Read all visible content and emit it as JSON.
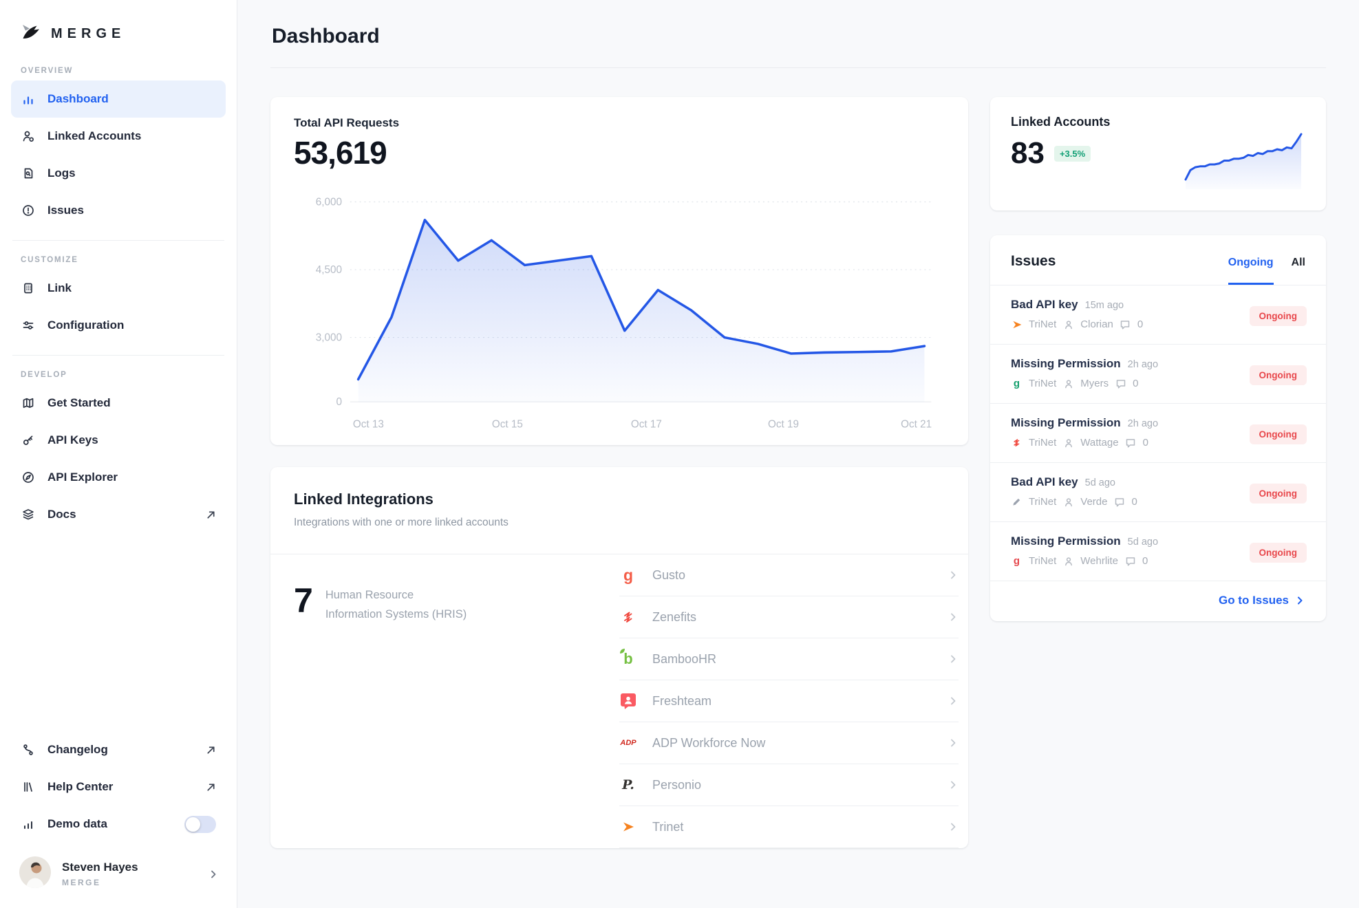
{
  "header": {
    "title": "Dashboard"
  },
  "sidebar": {
    "brand": "MERGE",
    "sections": [
      {
        "label": "OVERVIEW",
        "items": [
          {
            "label": "Dashboard"
          },
          {
            "label": "Linked Accounts"
          },
          {
            "label": "Logs"
          },
          {
            "label": "Issues"
          }
        ]
      },
      {
        "label": "CUSTOMIZE",
        "items": [
          {
            "label": "Link"
          },
          {
            "label": "Configuration"
          }
        ]
      },
      {
        "label": "DEVELOP",
        "items": [
          {
            "label": "Get Started"
          },
          {
            "label": "API Keys"
          },
          {
            "label": "API Explorer"
          },
          {
            "label": "Docs"
          }
        ]
      }
    ],
    "footer_items": [
      {
        "label": "Changelog"
      },
      {
        "label": "Help Center"
      },
      {
        "label": "Demo data"
      }
    ],
    "demo_data_toggle": "off",
    "profile": {
      "name": "Steven Hayes",
      "org": "MERGE"
    }
  },
  "api_requests_card": {
    "title": "Total API Requests",
    "value": "53,619"
  },
  "chart_data": [
    {
      "type": "area",
      "title": "Total API Requests",
      "total": 53619,
      "x_tick_labels": [
        "Oct 13",
        "Oct 15",
        "Oct 17",
        "Oct 19",
        "Oct 21"
      ],
      "y_ticks": [
        0,
        3000,
        4500,
        6000
      ],
      "y_tick_labels": [
        "0",
        "3,000",
        "4,500",
        "6,000"
      ],
      "ylim": [
        0,
        6000
      ],
      "grid": "dotted-horizontal",
      "line_color": "#2457e6",
      "values": [
        1050,
        3450,
        5600,
        4700,
        5150,
        4600,
        4700,
        4800,
        3150,
        4050,
        3600,
        3000,
        2700,
        2250,
        2300,
        2320,
        2350,
        2600
      ]
    },
    {
      "type": "line",
      "title": "Linked Accounts trend",
      "line_color": "#2457e6",
      "values": [
        30,
        40,
        43,
        44,
        44,
        46,
        46,
        47,
        50,
        50,
        52,
        52,
        53,
        56,
        55,
        58,
        57,
        60,
        60,
        62,
        61,
        64,
        63,
        70,
        78
      ]
    }
  ],
  "linked_accounts_card": {
    "title": "Linked Accounts",
    "value": "83",
    "delta": "+3.5%"
  },
  "issues_card": {
    "title": "Issues",
    "tabs": [
      "Ongoing",
      "All"
    ],
    "active_tab": "Ongoing",
    "items": [
      {
        "title": "Bad API key",
        "time": "15m ago",
        "integration": "TriNet",
        "user": "Clorian",
        "comments": "0",
        "status": "Ongoing"
      },
      {
        "title": "Missing Permission",
        "time": "2h ago",
        "integration": "TriNet",
        "user": "Myers",
        "comments": "0",
        "status": "Ongoing"
      },
      {
        "title": "Missing Permission",
        "time": "2h ago",
        "integration": "TriNet",
        "user": "Wattage",
        "comments": "0",
        "status": "Ongoing"
      },
      {
        "title": "Bad API key",
        "time": "5d ago",
        "integration": "TriNet",
        "user": "Verde",
        "comments": "0",
        "status": "Ongoing"
      },
      {
        "title": "Missing Permission",
        "time": "5d ago",
        "integration": "TriNet",
        "user": "Wehrlite",
        "comments": "0",
        "status": "Ongoing"
      }
    ],
    "footer_link": "Go to Issues"
  },
  "integrations_card": {
    "title": "Linked Integrations",
    "subtitle": "Integrations with one or more linked accounts",
    "category_count": "7",
    "category_line1": "Human Resource",
    "category_line2": "Information Systems (HRIS)",
    "items": [
      {
        "name": "Gusto"
      },
      {
        "name": "Zenefits"
      },
      {
        "name": "BambooHR"
      },
      {
        "name": "Freshteam"
      },
      {
        "name": "ADP Workforce Now"
      },
      {
        "name": "Personio"
      },
      {
        "name": "Trinet"
      }
    ]
  },
  "colors": {
    "accent_blue": "#2161f0",
    "chart_line": "#2457e6",
    "badge_green_text": "#13a076",
    "badge_green_bg": "#e4f5ec",
    "badge_red_text": "#e8474b",
    "badge_red_bg": "#fdeded",
    "sidebar_active_bg": "#eaf1fd"
  }
}
